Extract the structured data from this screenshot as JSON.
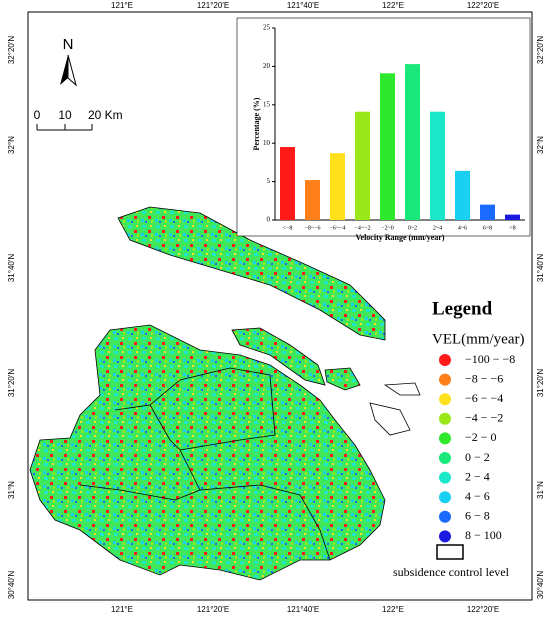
{
  "map": {
    "lon_labels": [
      "121°E",
      "121°20'E",
      "121°40'E",
      "122°E",
      "122°20'E"
    ],
    "lat_labels": [
      "32°20'N",
      "32°N",
      "31°40'N",
      "31°20'N",
      "31°N",
      "30°40'N"
    ],
    "north": "N",
    "scale_labels": [
      "0",
      "10",
      "20 Km"
    ]
  },
  "legend": {
    "title": "Legend",
    "subtitle": "VEL(mm/year)",
    "items": [
      {
        "label": "−100 − −8",
        "color": "#ff1a1a"
      },
      {
        "label": "−8 − −6",
        "color": "#ff7f1a"
      },
      {
        "label": "−6 − −4",
        "color": "#ffe01a"
      },
      {
        "label": "−4 − −2",
        "color": "#9be81a"
      },
      {
        "label": "−2 − 0",
        "color": "#2ee82e"
      },
      {
        "label": "0 − 2",
        "color": "#1ae87a"
      },
      {
        "label": "2 − 4",
        "color": "#1ae8c8"
      },
      {
        "label": "4 − 6",
        "color": "#1ad0f0"
      },
      {
        "label": "6 − 8",
        "color": "#1a6aff"
      },
      {
        "label": "8 − 100",
        "color": "#1a1ae0"
      }
    ],
    "boundary": "subsidence control level"
  },
  "chart_data": {
    "type": "bar",
    "ylabel": "Percentage (%)",
    "xlabel": "Velocity Range (mm/year)",
    "categories": [
      "<−8",
      "−8~−6",
      "−6~−4",
      "−4~−2",
      "−2~0",
      "0~2",
      "2~4",
      "4~6",
      "6~8",
      ">8"
    ],
    "values": [
      9.5,
      5.2,
      8.7,
      14.1,
      19.1,
      20.3,
      14.1,
      6.4,
      2.0,
      0.7
    ],
    "colors": [
      "#ff1a1a",
      "#ff7f1a",
      "#ffe01a",
      "#9be81a",
      "#2ee82e",
      "#1ae87a",
      "#1ae8c8",
      "#1ad0f0",
      "#1a6aff",
      "#1a1ae0"
    ],
    "ylim": [
      0,
      25
    ],
    "yticks": [
      0,
      5,
      10,
      15,
      20,
      25
    ]
  }
}
